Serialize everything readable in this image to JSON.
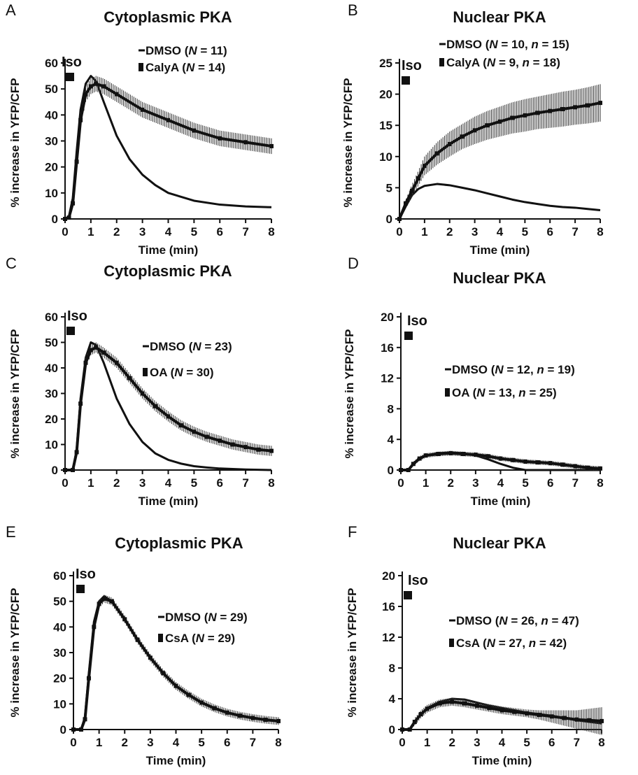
{
  "panels": [
    {
      "letter": "A",
      "title": "Cytoplasmic PKA",
      "stimulus": "Iso",
      "legend": [
        {
          "label": "DMSO",
          "stat": "N = 11",
          "parts": [
            [
              "DMSO (",
              ""
            ],
            [
              "N",
              "i"
            ],
            [
              " = 11)",
              ""
            ]
          ]
        },
        {
          "label": "CalyA",
          "stat": "N = 14",
          "parts": [
            [
              "CalyA (",
              ""
            ],
            [
              "N",
              "i"
            ],
            [
              " = 14)",
              ""
            ]
          ]
        }
      ]
    },
    {
      "letter": "B",
      "title": "Nuclear PKA",
      "stimulus": "Iso",
      "legend": [
        {
          "label": "DMSO",
          "stat": "N = 10, n = 15",
          "parts": [
            [
              "DMSO (",
              ""
            ],
            [
              "N",
              "i"
            ],
            [
              " = 10, ",
              ""
            ],
            [
              "n",
              "i"
            ],
            [
              " = 15)",
              ""
            ]
          ]
        },
        {
          "label": "CalyA",
          "stat": "N = 9, n = 18",
          "parts": [
            [
              "CalyA (",
              ""
            ],
            [
              "N",
              "i"
            ],
            [
              " = 9, ",
              ""
            ],
            [
              "n",
              "i"
            ],
            [
              " = 18)",
              ""
            ]
          ]
        }
      ]
    },
    {
      "letter": "C",
      "title": "Cytoplasmic PKA",
      "stimulus": "Iso",
      "legend": [
        {
          "label": "DMSO",
          "stat": "N = 23",
          "parts": [
            [
              "DMSO (",
              ""
            ],
            [
              "N",
              "i"
            ],
            [
              " = 23)",
              ""
            ]
          ]
        },
        {
          "label": "OA",
          "stat": "N = 30",
          "parts": [
            [
              "OA (",
              ""
            ],
            [
              "N",
              "i"
            ],
            [
              " = 30)",
              ""
            ]
          ]
        }
      ]
    },
    {
      "letter": "D",
      "title": "Nuclear PKA",
      "stimulus": "Iso",
      "legend": [
        {
          "label": "DMSO",
          "stat": "N = 12, n = 19",
          "parts": [
            [
              "DMSO (",
              ""
            ],
            [
              "N",
              "i"
            ],
            [
              " = 12, ",
              ""
            ],
            [
              "n",
              "i"
            ],
            [
              " = 19)",
              ""
            ]
          ]
        },
        {
          "label": "OA",
          "stat": "N = 13, n = 25",
          "parts": [
            [
              "OA (",
              ""
            ],
            [
              "N",
              "i"
            ],
            [
              " = 13, ",
              ""
            ],
            [
              "n",
              "i"
            ],
            [
              " = 25)",
              ""
            ]
          ]
        }
      ]
    },
    {
      "letter": "E",
      "title": "Cytoplasmic PKA",
      "stimulus": "Iso",
      "legend": [
        {
          "label": "DMSO",
          "stat": "N = 29",
          "parts": [
            [
              "DMSO (",
              ""
            ],
            [
              "N",
              "i"
            ],
            [
              " = 29)",
              ""
            ]
          ]
        },
        {
          "label": "CsA",
          "stat": "N = 29",
          "parts": [
            [
              "CsA (",
              ""
            ],
            [
              "N",
              "i"
            ],
            [
              " = 29)",
              ""
            ]
          ]
        }
      ]
    },
    {
      "letter": "F",
      "title": "Nuclear PKA",
      "stimulus": "Iso",
      "legend": [
        {
          "label": "DMSO",
          "stat": "N = 26, n = 47",
          "parts": [
            [
              "DMSO (",
              ""
            ],
            [
              "N",
              "i"
            ],
            [
              " = 26, ",
              ""
            ],
            [
              "n",
              "i"
            ],
            [
              " = 47)",
              ""
            ]
          ]
        },
        {
          "label": "CsA",
          "stat": "N = 27, n = 42",
          "parts": [
            [
              "CsA (",
              ""
            ],
            [
              "N",
              "i"
            ],
            [
              " = 27, ",
              ""
            ],
            [
              "n",
              "i"
            ],
            [
              " = 42)",
              ""
            ]
          ]
        }
      ]
    }
  ],
  "chart_data": [
    {
      "type": "line",
      "title": "Cytoplasmic PKA",
      "xlabel": "Time (min)",
      "ylabel": "% increase in YFP/CFP",
      "xlim": [
        0,
        8
      ],
      "ylim": [
        0,
        60
      ],
      "xticks": [
        0,
        1,
        2,
        3,
        4,
        5,
        6,
        7,
        8
      ],
      "yticks": [
        0,
        10,
        20,
        30,
        40,
        50,
        60
      ],
      "legend_position": "top-right",
      "series": [
        {
          "name": "DMSO",
          "x": [
            0,
            0.15,
            0.3,
            0.45,
            0.6,
            0.8,
            1.0,
            1.2,
            1.5,
            2.0,
            2.5,
            3.0,
            3.5,
            4.0,
            5.0,
            6.0,
            7.0,
            8.0
          ],
          "y": [
            0,
            1,
            8,
            26,
            42,
            52,
            55,
            53,
            45,
            32,
            23,
            17,
            13,
            10,
            7,
            5.5,
            4.8,
            4.5
          ]
        },
        {
          "name": "CalyA",
          "error_bars": true,
          "x": [
            0,
            0.15,
            0.3,
            0.45,
            0.6,
            0.8,
            1.0,
            1.2,
            1.5,
            2.0,
            3.0,
            4.0,
            5.0,
            6.0,
            7.0,
            8.0
          ],
          "y": [
            0,
            0.5,
            6,
            22,
            38,
            48,
            51,
            52,
            51,
            48,
            42,
            38,
            34,
            31,
            29.5,
            28
          ],
          "error": [
            0,
            0.5,
            2,
            3,
            3,
            3,
            3,
            3,
            3,
            3,
            3,
            3,
            3,
            3,
            3,
            3
          ]
        }
      ]
    },
    {
      "type": "line",
      "title": "Nuclear PKA",
      "xlabel": "Time (min)",
      "ylabel": "% increase in YFP/CFP",
      "xlim": [
        0,
        8
      ],
      "ylim": [
        0,
        25
      ],
      "xticks": [
        0,
        1,
        2,
        3,
        4,
        5,
        6,
        7,
        8
      ],
      "yticks": [
        0,
        5,
        10,
        15,
        20,
        25
      ],
      "legend_position": "top-right",
      "series": [
        {
          "name": "DMSO",
          "x": [
            0,
            0.25,
            0.5,
            0.75,
            1.0,
            1.5,
            2.0,
            2.5,
            3.0,
            3.5,
            4.0,
            4.5,
            5.0,
            5.5,
            6.0,
            6.5,
            7.0,
            7.5,
            8.0
          ],
          "y": [
            0,
            2,
            3.8,
            4.8,
            5.3,
            5.6,
            5.4,
            5.0,
            4.6,
            4.1,
            3.6,
            3.1,
            2.7,
            2.4,
            2.1,
            1.9,
            1.8,
            1.6,
            1.4
          ]
        },
        {
          "name": "CalyA",
          "error_bars": true,
          "x": [
            0,
            0.25,
            0.5,
            0.75,
            1.0,
            1.5,
            2.0,
            2.5,
            3.0,
            3.5,
            4.0,
            4.5,
            5.0,
            5.5,
            6.0,
            6.5,
            7.0,
            7.5,
            8.0
          ],
          "y": [
            0,
            2.5,
            4.5,
            6.5,
            8.5,
            10.5,
            12,
            13.2,
            14.2,
            15,
            15.6,
            16.2,
            16.6,
            17,
            17.3,
            17.6,
            17.9,
            18.2,
            18.6
          ],
          "error": [
            0,
            0.6,
            1,
            1.2,
            1.5,
            1.8,
            2,
            2,
            2.2,
            2.3,
            2.4,
            2.5,
            2.6,
            2.6,
            2.7,
            2.8,
            2.8,
            2.9,
            3
          ]
        }
      ]
    },
    {
      "type": "line",
      "title": "Cytoplasmic PKA",
      "xlabel": "Time (min)",
      "ylabel": "% increase in YFP/CFP",
      "xlim": [
        0,
        8
      ],
      "ylim": [
        0,
        60
      ],
      "xticks": [
        0,
        1,
        2,
        3,
        4,
        5,
        6,
        7,
        8
      ],
      "yticks": [
        0,
        10,
        20,
        30,
        40,
        50,
        60
      ],
      "legend_position": "top-right",
      "series": [
        {
          "name": "DMSO",
          "x": [
            0,
            0.3,
            0.45,
            0.6,
            0.8,
            1.0,
            1.2,
            1.5,
            2.0,
            2.5,
            3.0,
            3.5,
            4.0,
            4.5,
            5.0,
            5.5,
            6.0,
            7.0,
            8.0
          ],
          "y": [
            0,
            0,
            8,
            28,
            44,
            50,
            49,
            42,
            28,
            18,
            11,
            6.5,
            4,
            2.5,
            1.5,
            1,
            0.6,
            0.2,
            0
          ]
        },
        {
          "name": "OA",
          "error_bars": true,
          "x": [
            0,
            0.3,
            0.45,
            0.6,
            0.8,
            1.0,
            1.2,
            1.5,
            2.0,
            2.5,
            3.0,
            3.5,
            4.0,
            4.5,
            5.0,
            5.5,
            6.0,
            6.5,
            7.0,
            7.5,
            8.0
          ],
          "y": [
            0,
            0,
            7,
            26,
            42,
            47,
            48,
            46,
            42,
            36,
            30,
            25,
            21,
            17.5,
            15,
            13,
            11.5,
            10,
            9,
            8,
            7.5
          ],
          "error": [
            0,
            0,
            2,
            2,
            2,
            2,
            2,
            2,
            2,
            2,
            2,
            2,
            2,
            2,
            2,
            2,
            2,
            2,
            2,
            2,
            2
          ]
        }
      ]
    },
    {
      "type": "line",
      "title": "Nuclear PKA",
      "xlabel": "Time (min)",
      "ylabel": "% increase in YFP/CFP",
      "xlim": [
        0,
        8
      ],
      "ylim": [
        0,
        20
      ],
      "xticks": [
        0,
        1,
        2,
        3,
        4,
        5,
        6,
        7,
        8
      ],
      "yticks": [
        0,
        4,
        8,
        12,
        16,
        20
      ],
      "legend_position": "top-right",
      "series": [
        {
          "name": "DMSO",
          "x": [
            0,
            0.3,
            0.5,
            0.75,
            1.0,
            1.5,
            2.0,
            2.5,
            3.0,
            3.5,
            4.0,
            4.5,
            5.0,
            5.5,
            6.0,
            7.0,
            8.0
          ],
          "y": [
            0,
            0,
            0.8,
            1.5,
            1.9,
            2.2,
            2.3,
            2.2,
            1.9,
            1.4,
            0.8,
            0.3,
            0,
            0,
            0,
            0,
            0
          ]
        },
        {
          "name": "OA",
          "error_bars": true,
          "x": [
            0,
            0.3,
            0.5,
            0.75,
            1.0,
            1.5,
            2.0,
            2.5,
            3.0,
            3.5,
            4.0,
            4.5,
            5.0,
            5.5,
            6.0,
            6.5,
            7.0,
            7.5,
            8.0
          ],
          "y": [
            0,
            0,
            0.8,
            1.5,
            1.9,
            2.1,
            2.2,
            2.1,
            2.0,
            1.8,
            1.5,
            1.3,
            1.1,
            1.0,
            0.9,
            0.7,
            0.5,
            0.3,
            0.2
          ],
          "error": [
            0,
            0,
            0.3,
            0.3,
            0.3,
            0.3,
            0.3,
            0.3,
            0.3,
            0.3,
            0.3,
            0.3,
            0.3,
            0.3,
            0.3,
            0.3,
            0.3,
            0.3,
            0.3
          ]
        }
      ]
    },
    {
      "type": "line",
      "title": "Cytoplasmic PKA",
      "xlabel": "Time (min)",
      "ylabel": "% increase in YFP/CFP",
      "xlim": [
        0,
        8
      ],
      "ylim": [
        0,
        60
      ],
      "xticks": [
        0,
        1,
        2,
        3,
        4,
        5,
        6,
        7,
        8
      ],
      "yticks": [
        0,
        10,
        20,
        30,
        40,
        50,
        60
      ],
      "legend_position": "right",
      "series": [
        {
          "name": "DMSO",
          "x": [
            0,
            0.3,
            0.45,
            0.6,
            0.8,
            1.0,
            1.2,
            1.5,
            2.0,
            2.5,
            3.0,
            3.5,
            4.0,
            4.5,
            5.0,
            5.5,
            6.0,
            6.5,
            7.0,
            7.5,
            8.0
          ],
          "y": [
            0,
            0,
            5,
            22,
            42,
            50,
            52,
            50,
            43,
            35,
            28,
            22,
            17,
            13.5,
            10.5,
            8.3,
            6.6,
            5.4,
            4.5,
            3.8,
            3.3
          ]
        },
        {
          "name": "CsA",
          "error_bars": true,
          "x": [
            0,
            0.3,
            0.45,
            0.6,
            0.8,
            1.0,
            1.2,
            1.5,
            2.0,
            2.5,
            3.0,
            3.5,
            4.0,
            4.5,
            5.0,
            5.5,
            6.0,
            6.5,
            7.0,
            7.5,
            8.0
          ],
          "y": [
            0,
            0,
            4,
            20,
            40,
            49,
            51,
            50,
            43,
            35,
            28,
            22,
            17,
            13.5,
            10.5,
            8.3,
            6.6,
            5.4,
            4.5,
            3.8,
            3.3
          ],
          "error": [
            0,
            0,
            1.5,
            1.5,
            1.5,
            1.5,
            1.5,
            1.5,
            1.5,
            1.5,
            1.5,
            1.5,
            1.5,
            1.5,
            1.5,
            1.5,
            1.5,
            1.5,
            1.5,
            1.5,
            1.5
          ]
        }
      ]
    },
    {
      "type": "line",
      "title": "Nuclear PKA",
      "xlabel": "Time (min)",
      "ylabel": "% increase in YFP/CFP",
      "xlim": [
        0,
        8
      ],
      "ylim": [
        0,
        20
      ],
      "xticks": [
        0,
        1,
        2,
        3,
        4,
        5,
        6,
        7,
        8
      ],
      "yticks": [
        0,
        4,
        8,
        12,
        16,
        20
      ],
      "legend_position": "right",
      "series": [
        {
          "name": "DMSO",
          "x": [
            0,
            0.3,
            0.5,
            0.75,
            1.0,
            1.5,
            2.0,
            2.5,
            3.0,
            3.5,
            4.0,
            4.5,
            5.0,
            5.5,
            6.0,
            6.5,
            7.0,
            7.5,
            8.0
          ],
          "y": [
            0,
            0,
            1,
            2,
            2.8,
            3.6,
            4.0,
            3.9,
            3.5,
            3.1,
            2.8,
            2.5,
            2.2,
            2.0,
            1.8,
            1.5,
            1.2,
            1.0,
            0.8
          ]
        },
        {
          "name": "CsA",
          "error_bars": true,
          "x": [
            0,
            0.3,
            0.5,
            0.75,
            1.0,
            1.5,
            2.0,
            2.5,
            3.0,
            3.5,
            4.0,
            4.5,
            5.0,
            5.5,
            6.0,
            6.5,
            7.0,
            7.5,
            8.0
          ],
          "y": [
            0,
            0,
            1,
            2,
            2.7,
            3.4,
            3.6,
            3.4,
            3.1,
            2.8,
            2.5,
            2.3,
            2.1,
            1.9,
            1.7,
            1.5,
            1.3,
            1.2,
            1.1
          ],
          "error": [
            0,
            0,
            0.5,
            0.5,
            0.5,
            0.5,
            0.5,
            0.5,
            0.5,
            0.5,
            0.5,
            0.5,
            0.5,
            0.6,
            0.8,
            1.0,
            1.2,
            1.5,
            1.8
          ]
        }
      ]
    }
  ]
}
